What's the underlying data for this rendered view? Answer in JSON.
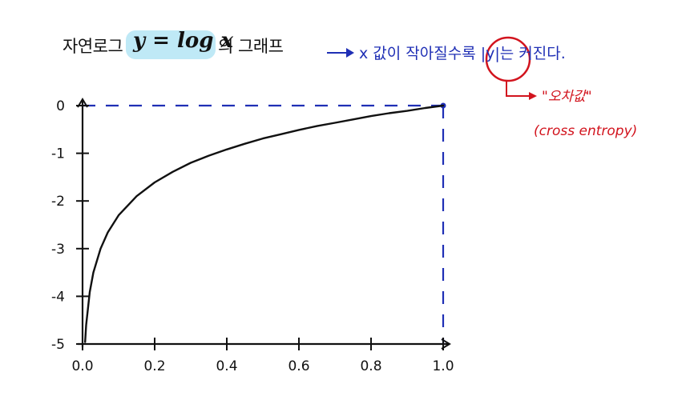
{
  "header": {
    "title_left": "자연로그",
    "equation": "y = log x",
    "title_right": "의 그래프",
    "note": "x 값이 작아질수록 |y|는 커진다.",
    "note_abs": "|y|",
    "subnote": "\"오차값\"",
    "subnote2": "(cross entropy)"
  },
  "chart_data": {
    "type": "line",
    "title": "자연로그 y = log x 의 그래프",
    "xlabel": "",
    "ylabel": "",
    "xlim": [
      0.0,
      1.0
    ],
    "ylim": [
      -5,
      0
    ],
    "xticks": [
      "0.0",
      "0.2",
      "0.4",
      "0.6",
      "0.8",
      "1.0"
    ],
    "yticks": [
      "0",
      "-1",
      "-2",
      "-3",
      "-4",
      "-5"
    ],
    "series": [
      {
        "x": [
          0.007,
          0.01,
          0.02,
          0.03,
          0.05,
          0.07,
          0.1,
          0.15,
          0.2,
          0.25,
          0.3,
          0.35,
          0.4,
          0.45,
          0.5,
          0.55,
          0.6,
          0.65,
          0.7,
          0.75,
          0.8,
          0.85,
          0.9,
          0.95,
          1.0
        ],
        "y": [
          -4.96,
          -4.6,
          -3.91,
          -3.5,
          -3.0,
          -2.66,
          -2.3,
          -1.9,
          -1.61,
          -1.39,
          -1.2,
          -1.05,
          -0.92,
          -0.8,
          -0.69,
          -0.6,
          -0.51,
          -0.43,
          -0.36,
          -0.29,
          -0.22,
          -0.16,
          -0.11,
          -0.05,
          0.0
        ]
      }
    ],
    "annotation": "dashed lines from (1.0, 0) to y-axis and down to x-axis",
    "colors": {
      "curve": "#111111",
      "dash": "#1f2fb5",
      "note": "#1f2fb5",
      "highlight": "#bfe9f6",
      "circle": "#d2141e"
    }
  }
}
